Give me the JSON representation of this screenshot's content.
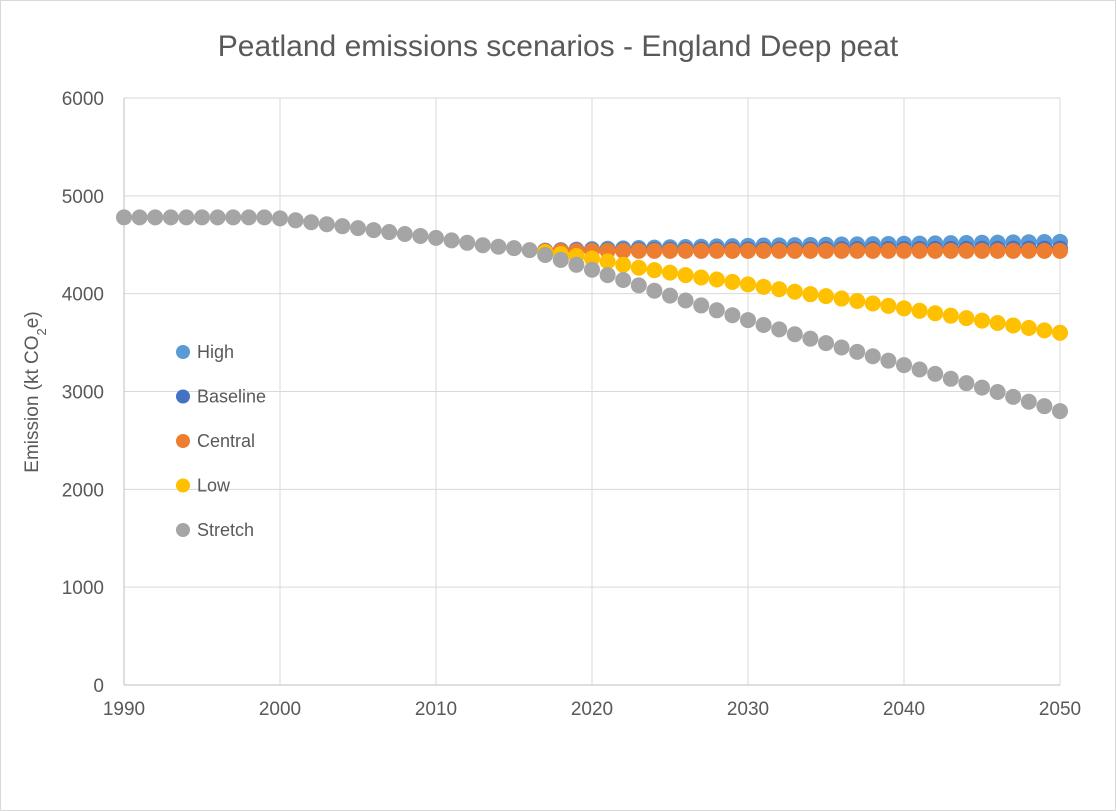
{
  "chart_data": {
    "type": "scatter",
    "title": "Peatland emissions scenarios - England Deep peat",
    "ylabel_main": "Emission (kt CO",
    "ylabel_sub": "2",
    "ylabel_end": "e)",
    "xlim": [
      1990,
      2050
    ],
    "ylim": [
      0,
      6000
    ],
    "x_ticks": [
      1990,
      2000,
      2010,
      2020,
      2030,
      2040,
      2050
    ],
    "y_ticks": [
      0,
      1000,
      2000,
      3000,
      4000,
      5000,
      6000
    ],
    "grid": true,
    "legend_position": "left",
    "common_history": {
      "x": [
        1990,
        1991,
        1992,
        1993,
        1994,
        1995,
        1996,
        1997,
        1998,
        1999,
        2000,
        2001,
        2002,
        2003,
        2004,
        2005,
        2006,
        2007,
        2008,
        2009,
        2010,
        2011,
        2012,
        2013,
        2014,
        2015,
        2016
      ],
      "y": [
        4780,
        4780,
        4780,
        4780,
        4780,
        4780,
        4780,
        4780,
        4780,
        4780,
        4770,
        4750,
        4730,
        4710,
        4690,
        4670,
        4650,
        4630,
        4610,
        4590,
        4570,
        4545,
        4520,
        4495,
        4480,
        4465,
        4445
      ]
    },
    "series": [
      {
        "name": "High",
        "color": "#5b9bd5",
        "x": [
          2017,
          2018,
          2019,
          2020,
          2021,
          2022,
          2023,
          2024,
          2025,
          2026,
          2027,
          2028,
          2029,
          2030,
          2031,
          2032,
          2033,
          2034,
          2035,
          2036,
          2037,
          2038,
          2039,
          2040,
          2041,
          2042,
          2043,
          2044,
          2045,
          2046,
          2047,
          2048,
          2049,
          2050
        ],
        "y": [
          4440,
          4445,
          4450,
          4455,
          4459,
          4463,
          4467,
          4471,
          4474,
          4477,
          4480,
          4483,
          4486,
          4489,
          4492,
          4494,
          4496,
          4498,
          4500,
          4502,
          4504,
          4506,
          4508,
          4510,
          4512,
          4514,
          4516,
          4518,
          4520,
          4522,
          4524,
          4526,
          4528,
          4530
        ]
      },
      {
        "name": "Baseline",
        "color": "#4472c4",
        "x": [
          2017,
          2018,
          2019,
          2020,
          2021,
          2022,
          2023,
          2024,
          2025,
          2026,
          2027,
          2028,
          2029,
          2030,
          2031,
          2032,
          2033,
          2034,
          2035,
          2036,
          2037,
          2038,
          2039,
          2040,
          2041,
          2042,
          2043,
          2044,
          2045,
          2046,
          2047,
          2048,
          2049,
          2050
        ],
        "y": [
          4438,
          4440,
          4442,
          4443,
          4444,
          4445,
          4446,
          4447,
          4448,
          4449,
          4450,
          4450,
          4451,
          4451,
          4452,
          4452,
          4453,
          4453,
          4454,
          4454,
          4455,
          4455,
          4456,
          4456,
          4457,
          4457,
          4458,
          4458,
          4459,
          4459,
          4460,
          4460,
          4461,
          4461
        ]
      },
      {
        "name": "Central",
        "color": "#ed7d31",
        "x": [
          2017,
          2018,
          2019,
          2020,
          2021,
          2022,
          2023,
          2024,
          2025,
          2026,
          2027,
          2028,
          2029,
          2030,
          2031,
          2032,
          2033,
          2034,
          2035,
          2036,
          2037,
          2038,
          2039,
          2040,
          2041,
          2042,
          2043,
          2044,
          2045,
          2046,
          2047,
          2048,
          2049,
          2050
        ],
        "y": [
          4435,
          4437,
          4438,
          4438,
          4438,
          4438,
          4438,
          4438,
          4438,
          4438,
          4438,
          4438,
          4438,
          4438,
          4438,
          4438,
          4438,
          4438,
          4438,
          4438,
          4438,
          4438,
          4438,
          4438,
          4438,
          4438,
          4438,
          4438,
          4438,
          4438,
          4438,
          4438,
          4438,
          4438
        ]
      },
      {
        "name": "Low",
        "color": "#ffc000",
        "x": [
          2017,
          2018,
          2019,
          2020,
          2021,
          2022,
          2023,
          2024,
          2025,
          2026,
          2027,
          2028,
          2029,
          2030,
          2031,
          2032,
          2033,
          2034,
          2035,
          2036,
          2037,
          2038,
          2039,
          2040,
          2041,
          2042,
          2043,
          2044,
          2045,
          2046,
          2047,
          2048,
          2049,
          2050
        ],
        "y": [
          4425,
          4405,
          4385,
          4360,
          4330,
          4295,
          4265,
          4240,
          4215,
          4190,
          4165,
          4145,
          4120,
          4095,
          4070,
          4045,
          4020,
          3995,
          3975,
          3950,
          3925,
          3900,
          3875,
          3850,
          3825,
          3800,
          3775,
          3750,
          3725,
          3700,
          3675,
          3650,
          3625,
          3600
        ]
      },
      {
        "name": "Stretch",
        "color": "#a5a5a5",
        "x": [
          2017,
          2018,
          2019,
          2020,
          2021,
          2022,
          2023,
          2024,
          2025,
          2026,
          2027,
          2028,
          2029,
          2030,
          2031,
          2032,
          2033,
          2034,
          2035,
          2036,
          2037,
          2038,
          2039,
          2040,
          2041,
          2042,
          2043,
          2044,
          2045,
          2046,
          2047,
          2048,
          2049,
          2050
        ],
        "y": [
          4395,
          4345,
          4295,
          4245,
          4190,
          4140,
          4085,
          4030,
          3980,
          3930,
          3880,
          3830,
          3780,
          3730,
          3680,
          3635,
          3585,
          3540,
          3495,
          3450,
          3405,
          3360,
          3315,
          3270,
          3225,
          3180,
          3130,
          3085,
          3040,
          2995,
          2945,
          2895,
          2850,
          2800
        ]
      }
    ]
  }
}
